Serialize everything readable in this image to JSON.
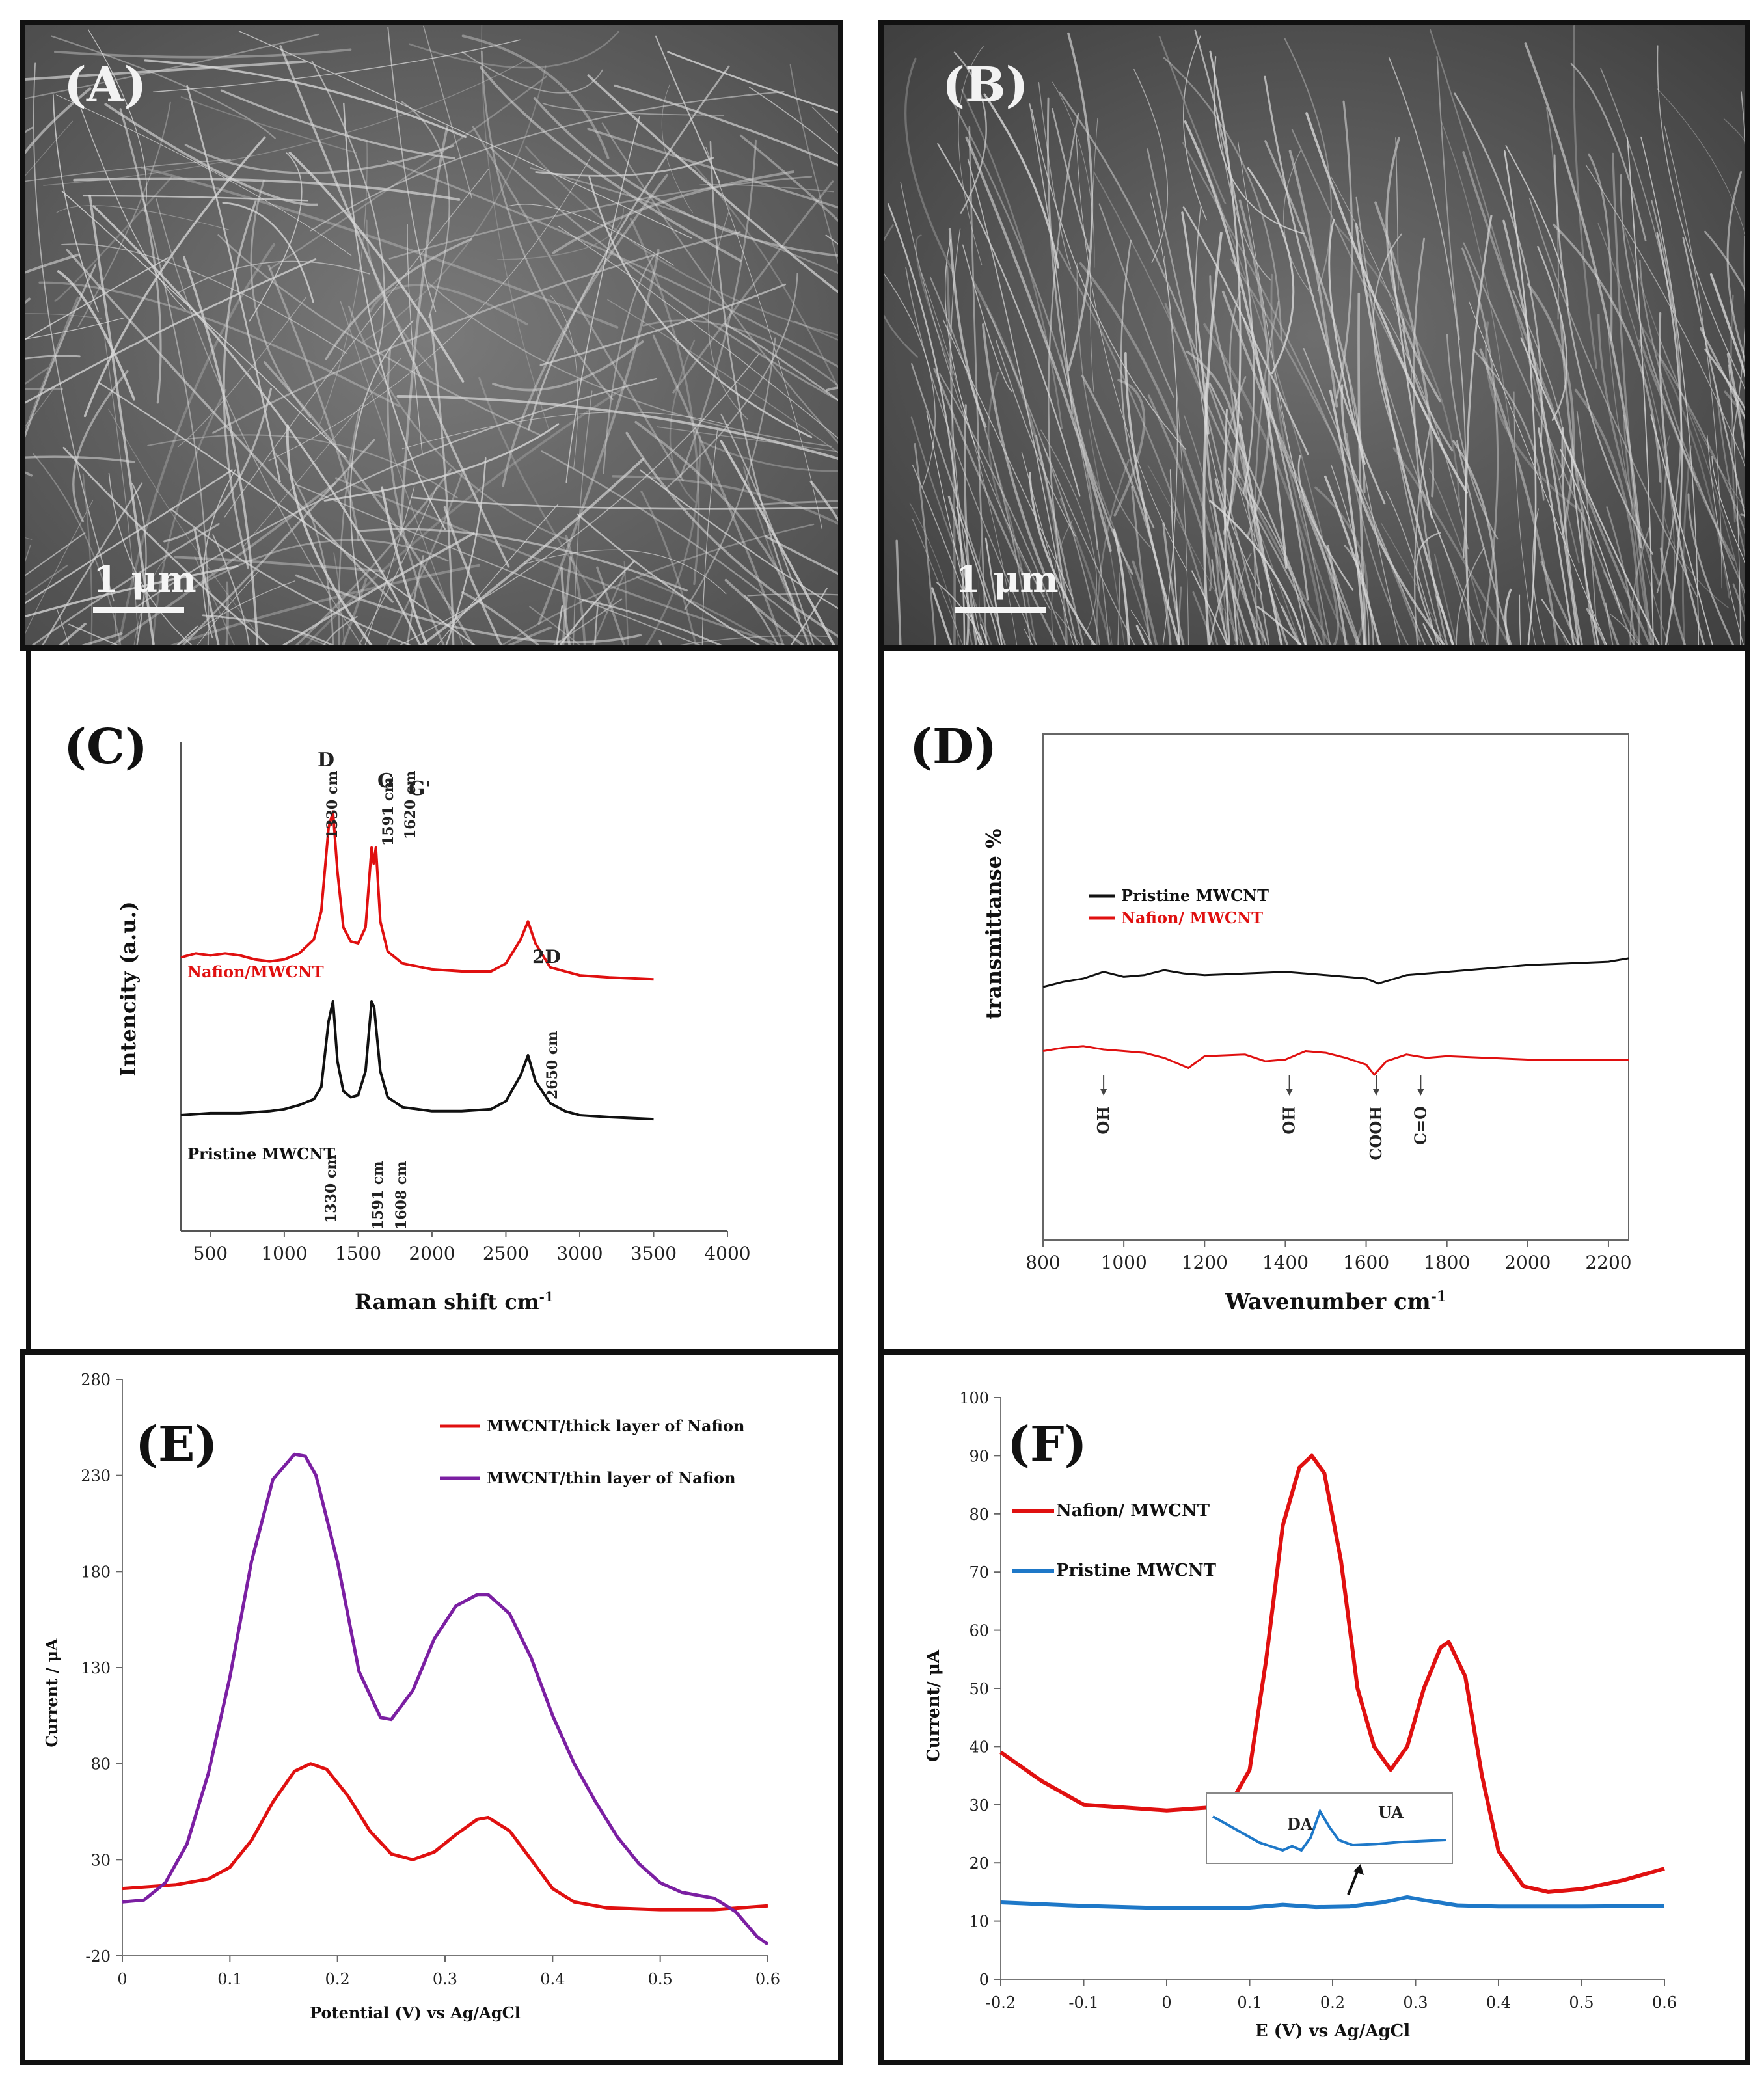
{
  "panels": {
    "A": {
      "label": "(A)",
      "scale_bar": "1 μm"
    },
    "B": {
      "label": "(B)",
      "scale_bar": "1 μm"
    },
    "C": {
      "label": "(C)"
    },
    "D": {
      "label": "(D)"
    },
    "E": {
      "label": "(E)"
    },
    "F": {
      "label": "(F)"
    }
  },
  "chart_data": [
    {
      "id": "C",
      "type": "line",
      "xlabel": "Raman shift cm",
      "xlabel_sup": "-1",
      "ylabel": "Intencity (a.u.)",
      "xlim": [
        300,
        4000
      ],
      "xticks": [
        500,
        1000,
        1500,
        2000,
        2500,
        3000,
        3500,
        4000
      ],
      "series": [
        {
          "name": "Nafion/MWCNT",
          "color": "#e01010",
          "x": [
            300,
            400,
            500,
            600,
            700,
            800,
            900,
            1000,
            1100,
            1200,
            1250,
            1300,
            1330,
            1360,
            1400,
            1450,
            1500,
            1550,
            1591,
            1605,
            1620,
            1650,
            1700,
            1800,
            2000,
            2200,
            2400,
            2500,
            2600,
            2650,
            2700,
            2800,
            2900,
            3000,
            3200,
            3500
          ],
          "y": [
            0.27,
            0.29,
            0.28,
            0.29,
            0.28,
            0.26,
            0.25,
            0.26,
            0.29,
            0.36,
            0.5,
            0.92,
            1.0,
            0.7,
            0.42,
            0.35,
            0.34,
            0.42,
            0.82,
            0.74,
            0.82,
            0.45,
            0.3,
            0.24,
            0.21,
            0.2,
            0.2,
            0.24,
            0.36,
            0.45,
            0.34,
            0.22,
            0.2,
            0.18,
            0.17,
            0.16
          ]
        },
        {
          "name": "Pristine MWCNT",
          "color": "#111111",
          "x": [
            300,
            500,
            700,
            900,
            1000,
            1100,
            1200,
            1250,
            1300,
            1330,
            1360,
            1400,
            1450,
            1500,
            1550,
            1591,
            1608,
            1650,
            1700,
            1800,
            2000,
            2200,
            2400,
            2500,
            2600,
            2650,
            2700,
            2800,
            2900,
            3000,
            3200,
            3500
          ],
          "y": [
            -0.52,
            -0.51,
            -0.51,
            -0.5,
            -0.49,
            -0.47,
            -0.44,
            -0.38,
            -0.05,
            0.05,
            -0.25,
            -0.4,
            -0.43,
            -0.42,
            -0.3,
            0.05,
            0.02,
            -0.3,
            -0.43,
            -0.48,
            -0.5,
            -0.5,
            -0.49,
            -0.45,
            -0.32,
            -0.22,
            -0.35,
            -0.46,
            -0.5,
            -0.52,
            -0.53,
            -0.54
          ]
        }
      ],
      "annotations": {
        "D": "D",
        "G": "G",
        "Gp": "G'",
        "twoD": "2D",
        "n1330": "1330 cm",
        "n1591": "1591 cm",
        "n1620": "1620 cm",
        "p2650": "2650 cm",
        "p1330": "1330 cm",
        "p1591": "1591 cm",
        "p1608": "1608 cm"
      }
    },
    {
      "id": "D",
      "type": "line",
      "xlabel": "Wavenumber cm",
      "xlabel_sup": "-1",
      "ylabel": "transmittanse %",
      "xlim": [
        800,
        2250
      ],
      "xticks": [
        800,
        1000,
        1200,
        1400,
        1600,
        1800,
        2000,
        2200
      ],
      "series": [
        {
          "name": "Pristine MWCNT",
          "color": "#111111",
          "x": [
            800,
            850,
            900,
            950,
            1000,
            1050,
            1100,
            1150,
            1200,
            1300,
            1400,
            1500,
            1600,
            1630,
            1700,
            1800,
            1900,
            2000,
            2100,
            2200,
            2250
          ],
          "y": [
            0.0,
            0.03,
            0.05,
            0.09,
            0.06,
            0.07,
            0.1,
            0.08,
            0.07,
            0.08,
            0.09,
            0.07,
            0.05,
            0.02,
            0.07,
            0.09,
            0.11,
            0.13,
            0.14,
            0.15,
            0.17
          ]
        },
        {
          "name": "Nafion/ MWCNT",
          "color": "#e01010",
          "x": [
            800,
            850,
            900,
            950,
            1000,
            1050,
            1100,
            1160,
            1200,
            1300,
            1350,
            1400,
            1450,
            1500,
            1550,
            1600,
            1620,
            1650,
            1700,
            1750,
            1800,
            1900,
            2000,
            2100,
            2200,
            2250
          ],
          "y": [
            -0.38,
            -0.36,
            -0.35,
            -0.37,
            -0.38,
            -0.39,
            -0.42,
            -0.48,
            -0.41,
            -0.4,
            -0.44,
            -0.43,
            -0.38,
            -0.39,
            -0.42,
            -0.46,
            -0.52,
            -0.44,
            -0.4,
            -0.42,
            -0.41,
            -0.42,
            -0.43,
            -0.43,
            -0.43,
            -0.43
          ]
        }
      ],
      "annotations": {
        "oh1": "OH",
        "oh2": "OH",
        "cooh": "COOH",
        "co": "C=O"
      }
    },
    {
      "id": "E",
      "type": "line",
      "xlabel": "Potential (V) vs Ag/AgCl",
      "ylabel": "Current / μA",
      "xlim": [
        0,
        0.6
      ],
      "ylim": [
        -20,
        280
      ],
      "xticks": [
        "0",
        "0.1",
        "0.2",
        "0.3",
        "0.4",
        "0.5",
        "0.6"
      ],
      "yticks": [
        "-20",
        "30",
        "80",
        "130",
        "180",
        "230",
        "280"
      ],
      "series": [
        {
          "name": "MWCNT/thick layer of Nafion",
          "color": "#e01010",
          "x": [
            0.0,
            0.05,
            0.08,
            0.1,
            0.12,
            0.14,
            0.16,
            0.175,
            0.19,
            0.21,
            0.23,
            0.25,
            0.27,
            0.29,
            0.31,
            0.33,
            0.34,
            0.36,
            0.38,
            0.4,
            0.42,
            0.45,
            0.5,
            0.55,
            0.6
          ],
          "y": [
            15,
            17,
            20,
            26,
            40,
            60,
            76,
            80,
            77,
            63,
            45,
            33,
            30,
            34,
            43,
            51,
            52,
            45,
            30,
            15,
            8,
            5,
            4,
            4,
            6
          ]
        },
        {
          "name": "MWCNT/thin layer of Nafion",
          "color": "#7b1fa2",
          "x": [
            0.0,
            0.02,
            0.04,
            0.06,
            0.08,
            0.1,
            0.12,
            0.14,
            0.16,
            0.17,
            0.18,
            0.2,
            0.22,
            0.24,
            0.25,
            0.27,
            0.29,
            0.31,
            0.33,
            0.34,
            0.36,
            0.38,
            0.4,
            0.42,
            0.44,
            0.46,
            0.48,
            0.5,
            0.52,
            0.55,
            0.57,
            0.59,
            0.6
          ],
          "y": [
            8,
            9,
            18,
            38,
            75,
            125,
            185,
            228,
            241,
            240,
            230,
            185,
            128,
            104,
            103,
            118,
            145,
            162,
            168,
            168,
            158,
            135,
            105,
            80,
            60,
            42,
            28,
            18,
            13,
            10,
            3,
            -10,
            -14
          ]
        }
      ]
    },
    {
      "id": "F",
      "type": "line",
      "xlabel": "E (V) vs Ag/AgCl",
      "ylabel": "Current/ μA",
      "xlim": [
        -0.2,
        0.6
      ],
      "ylim": [
        0,
        100
      ],
      "xticks": [
        "-0.2",
        "-0.1",
        "0",
        "0.1",
        "0.2",
        "0.3",
        "0.4",
        "0.5",
        "0.6"
      ],
      "yticks": [
        "0",
        "10",
        "20",
        "30",
        "40",
        "50",
        "60",
        "70",
        "80",
        "90",
        "100"
      ],
      "series": [
        {
          "name": "Nafion/ MWCNT",
          "color": "#e01010",
          "x": [
            -0.2,
            -0.15,
            -0.1,
            -0.05,
            0.0,
            0.05,
            0.08,
            0.1,
            0.12,
            0.14,
            0.16,
            0.175,
            0.19,
            0.21,
            0.23,
            0.25,
            0.27,
            0.29,
            0.31,
            0.33,
            0.34,
            0.36,
            0.38,
            0.4,
            0.43,
            0.46,
            0.5,
            0.55,
            0.6
          ],
          "y": [
            39,
            34,
            30,
            29.5,
            29,
            29.5,
            31,
            36,
            55,
            78,
            88,
            90,
            87,
            72,
            50,
            40,
            36,
            40,
            50,
            57,
            58,
            52,
            35,
            22,
            16,
            15,
            15.5,
            17,
            19
          ]
        },
        {
          "name": "Pristine MWCNT",
          "color": "#1e78c8",
          "x": [
            -0.2,
            -0.1,
            0.0,
            0.1,
            0.14,
            0.18,
            0.22,
            0.26,
            0.29,
            0.31,
            0.35,
            0.4,
            0.5,
            0.6
          ],
          "y": [
            13.2,
            12.6,
            12.2,
            12.3,
            12.8,
            12.4,
            12.5,
            13.2,
            14.1,
            13.6,
            12.7,
            12.5,
            12.5,
            12.6
          ]
        }
      ],
      "inset": {
        "labels": {
          "da": "DA",
          "ua": "UA"
        },
        "x": [
          0.0,
          0.05,
          0.1,
          0.15,
          0.17,
          0.19,
          0.21,
          0.23,
          0.25,
          0.27,
          0.3,
          0.35,
          0.4,
          0.45,
          0.5
        ],
        "y": [
          0.75,
          0.5,
          0.25,
          0.1,
          0.18,
          0.1,
          0.35,
          0.85,
          0.55,
          0.3,
          0.2,
          0.22,
          0.26,
          0.28,
          0.3
        ]
      }
    }
  ]
}
